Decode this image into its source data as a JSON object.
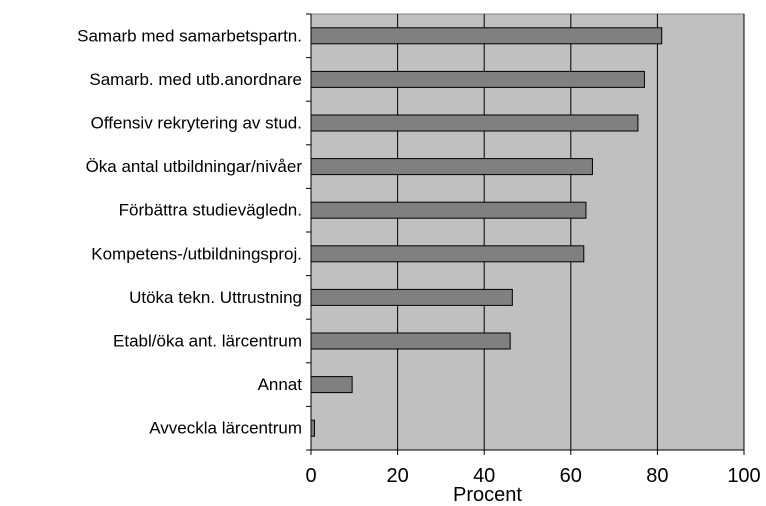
{
  "chart_data": {
    "type": "bar",
    "orientation": "horizontal",
    "categories": [
      "Samarb med samarbetspartn.",
      "Samarb. med utb.anordnare",
      "Offensiv rekrytering av stud.",
      "Öka antal utbildningar/nivåer",
      "Förbättra studievägledn.",
      "Kompetens-/utbildningsproj.",
      "Utöka tekn. Uttrustning",
      "Etabl/öka ant. lärcentrum",
      "Annat",
      "Avveckla lärcentrum"
    ],
    "values": [
      81,
      77,
      75.5,
      65,
      63.5,
      63,
      46.5,
      46,
      9.5,
      0.8
    ],
    "xlabel": "Procent",
    "xlim": [
      0,
      100
    ],
    "xticks": [
      "0",
      "20",
      "40",
      "60",
      "80",
      "100"
    ],
    "grid": "vertical",
    "colors": {
      "plot_bg": "#c0c0c0",
      "bar_fill": "#808080",
      "bar_stroke": "#000000",
      "grid": "#000000"
    }
  }
}
